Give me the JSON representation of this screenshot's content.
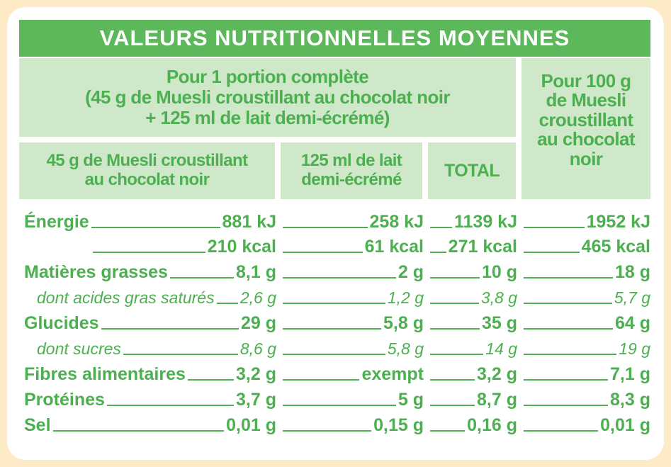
{
  "title": "VALEURS NUTRITIONNELLES MOYENNES",
  "header": {
    "portion_line1": "Pour 1 portion complète",
    "portion_line2": "(45 g de Muesli croustillant au chocolat noir",
    "portion_line3": "+ 125 ml de lait demi-écrémé)",
    "per100_line1": "Pour 100 g",
    "per100_line2": "de Muesli",
    "per100_line3": "croustillant",
    "per100_line4": "au chocolat",
    "per100_line5": "noir",
    "col_muesli_line1": "45 g de Muesli croustillant",
    "col_muesli_line2": "au chocolat noir",
    "col_milk_line1": "125 ml de lait",
    "col_milk_line2": "demi-écrémé",
    "col_total": "TOTAL"
  },
  "rows": [
    {
      "label": "Énergie",
      "style": "bold",
      "muesli": "881 kJ",
      "milk": "258 kJ",
      "total": "1139 kJ",
      "per100": "1952 kJ"
    },
    {
      "label": "",
      "style": "bold",
      "muesli": "210 kcal",
      "milk": "61 kcal",
      "total": "271 kcal",
      "per100": "465 kcal"
    },
    {
      "label": "Matières grasses",
      "style": "bold",
      "muesli": "8,1 g",
      "milk": "2 g",
      "total": "10 g",
      "per100": "18 g"
    },
    {
      "label": "dont acides gras saturés",
      "style": "ital",
      "muesli": "2,6 g",
      "milk": "1,2 g",
      "total": "3,8 g",
      "per100": "5,7 g"
    },
    {
      "label": "Glucides",
      "style": "bold",
      "muesli": "29 g",
      "milk": "5,8 g",
      "total": "35 g",
      "per100": "64 g"
    },
    {
      "label": "dont sucres",
      "style": "ital",
      "muesli": "8,6 g",
      "milk": "5,8 g",
      "total": "14 g",
      "per100": "19 g"
    },
    {
      "label": "Fibres alimentaires",
      "style": "bold",
      "muesli": "3,2 g",
      "milk": "exempt",
      "total": "3,2 g",
      "per100": "7,1 g"
    },
    {
      "label": "Protéines",
      "style": "bold",
      "muesli": "3,7 g",
      "milk": "5 g",
      "total": "8,7 g",
      "per100": "8,3 g"
    },
    {
      "label": "Sel",
      "style": "bold",
      "muesli": "0,01 g",
      "milk": "0,15 g",
      "total": "0,16 g",
      "per100": "0,01 g"
    }
  ],
  "colors": {
    "green": "#5cb85a",
    "light_green": "#cfe8ca",
    "text_green": "#4caf50",
    "background": "#fdebc8"
  }
}
